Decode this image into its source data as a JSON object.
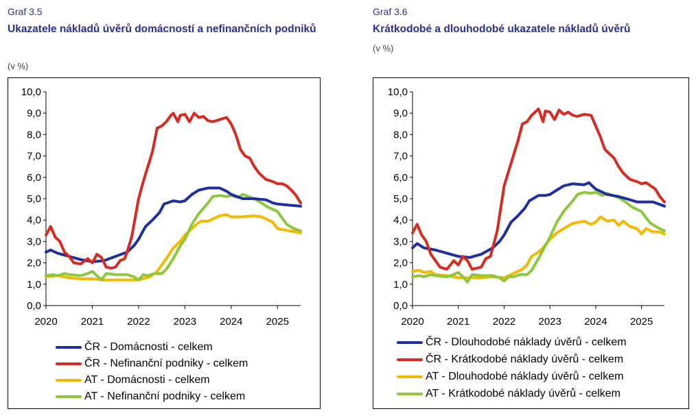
{
  "charts": [
    {
      "number": "Graf 3.5",
      "title": "Ukazatele nákladů úvěrů domácností a nefinančních podniků",
      "unit": "(v %)"
    },
    {
      "number": "Graf 3.6",
      "title": "Krátkodobé a dlouhodobé ukazatele nákladů úvěrů",
      "unit": "(v %)"
    }
  ],
  "chart_data": [
    {
      "type": "line",
      "title": "Ukazatele nákladů úvěrů domácností a nefinančních podniků",
      "ylabel": "(v %)",
      "xlim": [
        2020,
        2025.5
      ],
      "ylim": [
        0,
        10
      ],
      "x_ticks": [
        "2020",
        "2021",
        "2022",
        "2023",
        "2024",
        "2025"
      ],
      "y_ticks": [
        "0,0",
        "1,0",
        "2,0",
        "3,0",
        "4,0",
        "5,0",
        "6,0",
        "7,0",
        "8,0",
        "9,0",
        "10,0"
      ],
      "legend_position": "bottom",
      "series": [
        {
          "name": "ČR - Domácnosti - celkem",
          "color": "#1f2ea0",
          "x": [
            2020,
            2020.1,
            2020.25,
            2020.5,
            2020.75,
            2021,
            2021.25,
            2021.5,
            2021.75,
            2021.9,
            2022,
            2022.15,
            2022.3,
            2022.45,
            2022.55,
            2022.75,
            2022.9,
            2023,
            2023.15,
            2023.3,
            2023.5,
            2023.75,
            2023.9,
            2024,
            2024.25,
            2024.5,
            2024.75,
            2024.9,
            2025,
            2025.25,
            2025.5
          ],
          "y": [
            2.5,
            2.6,
            2.45,
            2.3,
            2.15,
            2.05,
            2.1,
            2.3,
            2.5,
            2.8,
            3.1,
            3.7,
            4.0,
            4.35,
            4.75,
            4.9,
            4.85,
            4.9,
            5.2,
            5.4,
            5.5,
            5.5,
            5.35,
            5.2,
            5.0,
            5.0,
            4.95,
            4.8,
            4.75,
            4.7,
            4.65
          ]
        },
        {
          "name": "ČR - Nefinanční podniky - celkem",
          "color": "#d92a20",
          "x": [
            2020,
            2020.05,
            2020.1,
            2020.2,
            2020.3,
            2020.4,
            2020.5,
            2020.6,
            2020.75,
            2020.9,
            2021,
            2021.1,
            2021.2,
            2021.3,
            2021.4,
            2021.5,
            2021.6,
            2021.7,
            2021.75,
            2021.85,
            2022,
            2022.1,
            2022.2,
            2022.3,
            2022.4,
            2022.5,
            2022.6,
            2022.7,
            2022.75,
            2022.85,
            2022.9,
            2023,
            2023.1,
            2023.2,
            2023.3,
            2023.4,
            2023.5,
            2023.6,
            2023.75,
            2023.9,
            2024,
            2024.1,
            2024.2,
            2024.3,
            2024.4,
            2024.5,
            2024.6,
            2024.75,
            2024.9,
            2025,
            2025.1,
            2025.2,
            2025.3,
            2025.4,
            2025.5
          ],
          "y": [
            3.3,
            3.5,
            3.7,
            3.2,
            3.0,
            2.5,
            2.3,
            2.0,
            1.95,
            2.2,
            2.0,
            2.4,
            2.25,
            1.8,
            1.75,
            1.8,
            2.1,
            2.2,
            2.5,
            3.2,
            5.0,
            5.8,
            6.5,
            7.2,
            8.3,
            8.4,
            8.6,
            8.9,
            9.0,
            8.6,
            8.9,
            8.95,
            8.6,
            9.0,
            8.8,
            8.85,
            8.65,
            8.6,
            8.7,
            8.8,
            8.5,
            8.0,
            7.3,
            7.0,
            6.9,
            6.5,
            6.2,
            5.9,
            5.8,
            5.7,
            5.7,
            5.6,
            5.4,
            5.15,
            4.8
          ]
        },
        {
          "name": "AT - Domácnosti - celkem",
          "color": "#f6b800",
          "x": [
            2020,
            2020.25,
            2020.5,
            2020.75,
            2021,
            2021.25,
            2021.5,
            2021.75,
            2022,
            2022.25,
            2022.4,
            2022.5,
            2022.6,
            2022.75,
            2022.9,
            2023,
            2023.15,
            2023.25,
            2023.35,
            2023.5,
            2023.75,
            2023.9,
            2024,
            2024.25,
            2024.5,
            2024.65,
            2024.75,
            2024.9,
            2025,
            2025.25,
            2025.5
          ],
          "y": [
            1.35,
            1.4,
            1.3,
            1.25,
            1.25,
            1.2,
            1.2,
            1.2,
            1.2,
            1.35,
            1.6,
            1.9,
            2.2,
            2.7,
            3.0,
            3.3,
            3.6,
            3.8,
            3.95,
            3.95,
            4.2,
            4.25,
            4.15,
            4.15,
            4.2,
            4.15,
            4.05,
            3.9,
            3.6,
            3.5,
            3.4
          ]
        },
        {
          "name": "AT - Nefinanční podniky - celkem",
          "color": "#8bc83c",
          "x": [
            2020,
            2020.15,
            2020.25,
            2020.4,
            2020.5,
            2020.75,
            2020.9,
            2021,
            2021.1,
            2021.2,
            2021.3,
            2021.5,
            2021.75,
            2021.9,
            2022,
            2022.1,
            2022.2,
            2022.35,
            2022.5,
            2022.6,
            2022.75,
            2022.9,
            2023,
            2023.15,
            2023.3,
            2023.5,
            2023.6,
            2023.75,
            2023.9,
            2024,
            2024.15,
            2024.25,
            2024.5,
            2024.65,
            2024.8,
            2025,
            2025.1,
            2025.2,
            2025.35,
            2025.5
          ],
          "y": [
            1.4,
            1.45,
            1.4,
            1.5,
            1.45,
            1.4,
            1.5,
            1.6,
            1.4,
            1.2,
            1.5,
            1.45,
            1.45,
            1.35,
            1.2,
            1.45,
            1.4,
            1.5,
            1.5,
            1.7,
            2.2,
            2.8,
            3.1,
            3.8,
            4.3,
            4.8,
            5.1,
            5.15,
            5.1,
            5.15,
            5.05,
            5.2,
            5.0,
            4.8,
            4.6,
            4.4,
            4.1,
            3.8,
            3.6,
            3.5
          ]
        }
      ]
    },
    {
      "type": "line",
      "title": "Krátkodobé a dlouhodobé ukazatele nákladů úvěrů",
      "ylabel": "(v %)",
      "xlim": [
        2020,
        2025.5
      ],
      "ylim": [
        0,
        10
      ],
      "x_ticks": [
        "2020",
        "2021",
        "2022",
        "2023",
        "2024",
        "2025"
      ],
      "y_ticks": [
        "0,0",
        "1,0",
        "2,0",
        "3,0",
        "4,0",
        "5,0",
        "6,0",
        "7,0",
        "8,0",
        "9,0",
        "10,0"
      ],
      "legend_position": "bottom",
      "series": [
        {
          "name": "ČR - Dlouhodobé náklady úvěrů - celkem",
          "color": "#1f2ea0",
          "x": [
            2020,
            2020.1,
            2020.25,
            2020.5,
            2020.75,
            2021,
            2021.25,
            2021.5,
            2021.75,
            2021.9,
            2022,
            2022.15,
            2022.3,
            2022.45,
            2022.55,
            2022.75,
            2022.9,
            2023,
            2023.15,
            2023.3,
            2023.5,
            2023.75,
            2023.85,
            2024,
            2024.25,
            2024.5,
            2024.75,
            2024.9,
            2025,
            2025.25,
            2025.5
          ],
          "y": [
            2.7,
            2.9,
            2.7,
            2.6,
            2.45,
            2.3,
            2.25,
            2.4,
            2.7,
            3.0,
            3.3,
            3.9,
            4.2,
            4.55,
            4.9,
            5.15,
            5.15,
            5.2,
            5.4,
            5.6,
            5.7,
            5.65,
            5.75,
            5.45,
            5.2,
            5.1,
            4.95,
            4.85,
            4.85,
            4.85,
            4.65
          ]
        },
        {
          "name": "ČR - Krátkodobé náklady úvěrů - celkem",
          "color": "#d92a20",
          "x": [
            2020,
            2020.05,
            2020.1,
            2020.2,
            2020.3,
            2020.4,
            2020.5,
            2020.6,
            2020.75,
            2020.9,
            2021,
            2021.1,
            2021.2,
            2021.3,
            2021.4,
            2021.5,
            2021.6,
            2021.7,
            2021.75,
            2021.85,
            2022,
            2022.1,
            2022.2,
            2022.3,
            2022.4,
            2022.5,
            2022.6,
            2022.7,
            2022.75,
            2022.85,
            2022.9,
            2023,
            2023.1,
            2023.2,
            2023.3,
            2023.4,
            2023.5,
            2023.6,
            2023.75,
            2023.9,
            2024,
            2024.1,
            2024.2,
            2024.3,
            2024.4,
            2024.5,
            2024.6,
            2024.75,
            2024.9,
            2025,
            2025.1,
            2025.2,
            2025.3,
            2025.4,
            2025.5
          ],
          "y": [
            3.4,
            3.6,
            3.8,
            3.3,
            3.0,
            2.4,
            2.1,
            1.8,
            1.7,
            2.1,
            1.9,
            2.3,
            2.1,
            1.7,
            1.75,
            1.8,
            2.2,
            2.3,
            2.7,
            3.5,
            5.6,
            6.3,
            7.0,
            7.7,
            8.5,
            8.6,
            8.9,
            9.1,
            9.2,
            8.6,
            9.1,
            9.05,
            8.7,
            9.15,
            8.95,
            9.05,
            8.9,
            8.85,
            8.95,
            8.9,
            8.4,
            7.9,
            7.3,
            7.1,
            6.9,
            6.5,
            6.2,
            5.9,
            5.8,
            5.7,
            5.75,
            5.6,
            5.45,
            5.1,
            4.85
          ]
        },
        {
          "name": "AT - Dlouhodobé náklady úvěrů - celkem",
          "color": "#f6b800",
          "x": [
            2020,
            2020.15,
            2020.25,
            2020.4,
            2020.5,
            2020.75,
            2021,
            2021.25,
            2021.5,
            2021.75,
            2022,
            2022.2,
            2022.4,
            2022.5,
            2022.6,
            2022.75,
            2022.85,
            2023,
            2023.15,
            2023.3,
            2023.5,
            2023.75,
            2023.9,
            2024,
            2024.1,
            2024.25,
            2024.4,
            2024.5,
            2024.6,
            2024.75,
            2024.9,
            2025,
            2025.1,
            2025.25,
            2025.4,
            2025.5
          ],
          "y": [
            1.6,
            1.65,
            1.55,
            1.6,
            1.45,
            1.4,
            1.3,
            1.3,
            1.3,
            1.35,
            1.3,
            1.5,
            1.7,
            1.9,
            2.3,
            2.5,
            2.7,
            3.1,
            3.4,
            3.6,
            3.85,
            3.95,
            3.8,
            3.9,
            4.15,
            3.95,
            4.0,
            3.75,
            3.95,
            3.7,
            3.6,
            3.35,
            3.6,
            3.45,
            3.45,
            3.35
          ]
        },
        {
          "name": "AT - Krátkodobé náklady úvěrů - celkem",
          "color": "#8bc83c",
          "x": [
            2020,
            2020.15,
            2020.25,
            2020.4,
            2020.5,
            2020.75,
            2020.9,
            2021,
            2021.1,
            2021.2,
            2021.3,
            2021.5,
            2021.75,
            2021.9,
            2022,
            2022.1,
            2022.2,
            2022.35,
            2022.5,
            2022.6,
            2022.75,
            2022.9,
            2023,
            2023.15,
            2023.3,
            2023.5,
            2023.6,
            2023.75,
            2023.9,
            2024,
            2024.15,
            2024.25,
            2024.5,
            2024.65,
            2024.8,
            2025,
            2025.1,
            2025.2,
            2025.35,
            2025.5
          ],
          "y": [
            1.35,
            1.4,
            1.35,
            1.45,
            1.4,
            1.35,
            1.45,
            1.55,
            1.35,
            1.1,
            1.45,
            1.4,
            1.4,
            1.3,
            1.15,
            1.35,
            1.35,
            1.45,
            1.45,
            1.65,
            2.2,
            2.8,
            3.2,
            3.9,
            4.4,
            4.9,
            5.2,
            5.3,
            5.25,
            5.3,
            5.15,
            5.25,
            5.05,
            4.85,
            4.6,
            4.4,
            4.1,
            3.85,
            3.65,
            3.5
          ]
        }
      ]
    }
  ]
}
